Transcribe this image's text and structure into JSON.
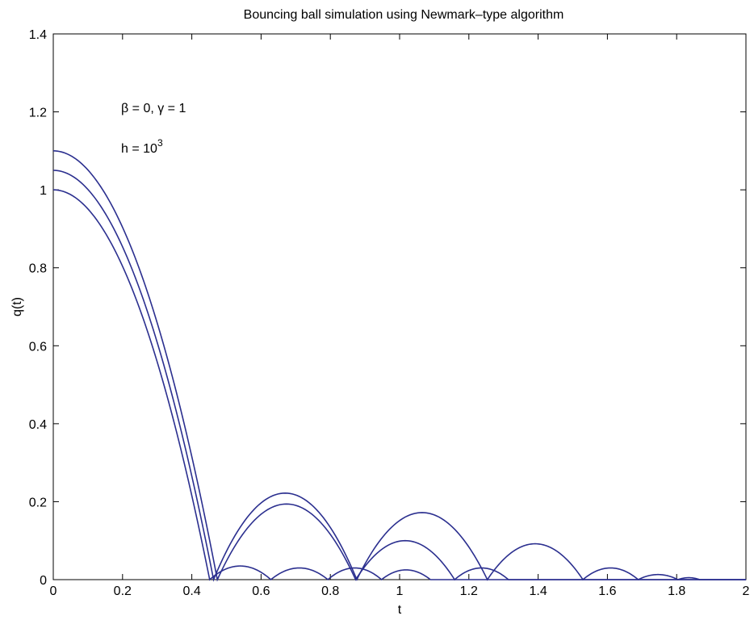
{
  "chart_data": {
    "type": "line",
    "title": "Bouncing ball simulation using Newmark–type algorithm",
    "xlabel": "t",
    "ylabel": "q(t)",
    "xlim": [
      0,
      2
    ],
    "ylim": [
      0,
      1.4
    ],
    "xticks": [
      0,
      0.2,
      0.4,
      0.6,
      0.8,
      1,
      1.2,
      1.4,
      1.6,
      1.8,
      2
    ],
    "yticks": [
      0,
      0.2,
      0.4,
      0.6,
      0.8,
      1,
      1.2,
      1.4
    ],
    "xtick_labels": [
      "0",
      "0.2",
      "0.4",
      "0.6",
      "0.8",
      "1",
      "1.2",
      "1.4",
      "1.6",
      "1.8",
      "2"
    ],
    "ytick_labels": [
      "0",
      "0.2",
      "0.4",
      "0.6",
      "0.8",
      "1",
      "1.2",
      "1.4"
    ],
    "grid": false,
    "line_color": "#2b2f8f",
    "annotations": {
      "params": "β = 0, γ = 1",
      "step_base": "h = 10",
      "step_exp": "3"
    },
    "series": [
      {
        "q0": 1.1,
        "first_impact": 0.4737,
        "arches": [
          {
            "start": 0.4737,
            "end": 0.8731,
            "peak": 0.194
          },
          {
            "start": 0.8731,
            "end": 1.1589,
            "peak": 0.1
          },
          {
            "start": 1.1589,
            "end": 1.3141,
            "peak": 0.03
          },
          {
            "start": 1.3141,
            "end": 1.3141,
            "peak": 0.0
          }
        ]
      },
      {
        "q0": 1.05,
        "first_impact": 0.4628,
        "arches": [
          {
            "start": 0.4628,
            "end": 0.8765,
            "peak": 0.222
          },
          {
            "start": 0.8765,
            "end": 1.2534,
            "peak": 0.172
          },
          {
            "start": 1.2534,
            "end": 1.5293,
            "peak": 0.092
          },
          {
            "start": 1.5293,
            "end": 1.6889,
            "peak": 0.03
          },
          {
            "start": 1.6889,
            "end": 1.8036,
            "peak": 0.013
          },
          {
            "start": 1.8036,
            "end": 1.8664,
            "peak": 0.005
          }
        ]
      },
      {
        "q0": 1.0,
        "first_impact": 0.4516,
        "arches": [
          {
            "start": 0.4516,
            "end": 0.6283,
            "peak": 0.035
          },
          {
            "start": 0.6283,
            "end": 0.7929,
            "peak": 0.03
          },
          {
            "start": 0.7929,
            "end": 0.9478,
            "peak": 0.03
          },
          {
            "start": 0.9478,
            "end": 1.0891,
            "peak": 0.025
          },
          {
            "start": 1.0891,
            "end": 1.0891,
            "peak": 0.0
          }
        ]
      }
    ]
  }
}
